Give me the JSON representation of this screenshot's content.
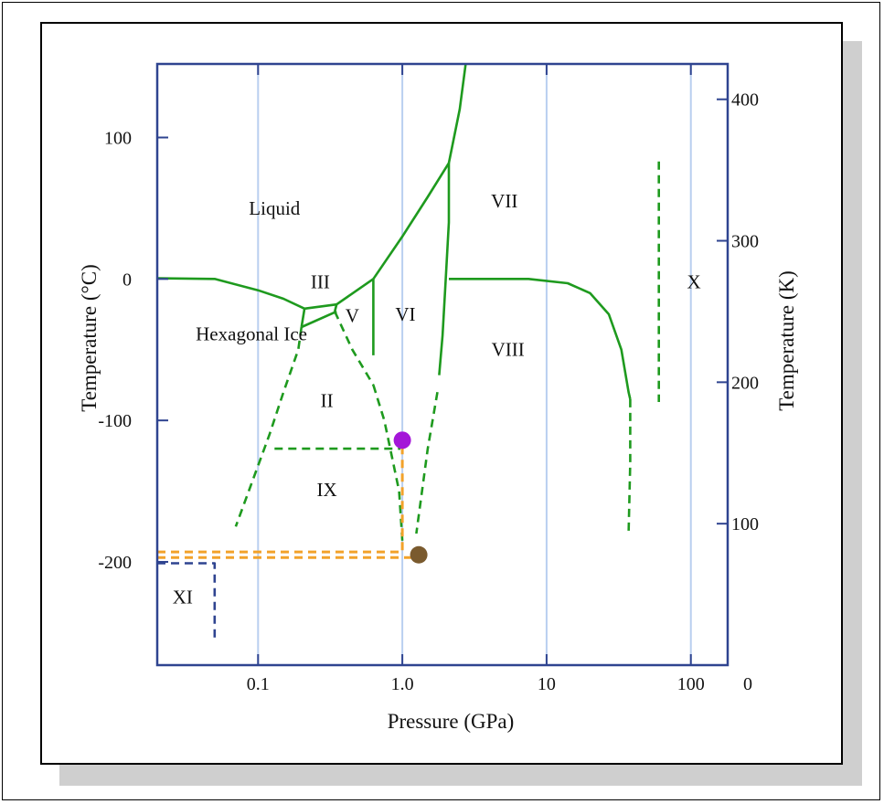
{
  "chart_data": {
    "type": "phase-diagram",
    "xlabel": "Pressure (GPa)",
    "ylabel_left": "Temperature (°C)",
    "ylabel_right": "Temperature (K)",
    "x_scale": "log",
    "xlim": [
      0.02,
      180
    ],
    "x_ticks": [
      0.1,
      1.0,
      10,
      100
    ],
    "x_tick_labels": [
      "0.1",
      "1.0",
      "10",
      "100"
    ],
    "ylim_c": [
      -273,
      152
    ],
    "y_ticks_c": [
      100,
      0,
      -100,
      -200
    ],
    "y_tick_labels_c": [
      "100",
      "0",
      "-100",
      "-200"
    ],
    "y_ticks_k": [
      400,
      300,
      200,
      100
    ],
    "y_tick_labels_k": [
      "400",
      "300",
      "200",
      "100"
    ],
    "y_axis_right_zero_label": "0",
    "grid": "vertical",
    "colors": {
      "axis": "#2f4490",
      "grid": "#b9cff0",
      "boundary": "#1e9a1e",
      "orange_path": "#f2a22a",
      "xi_boundary": "#2f4490",
      "purple_point": "#a416d8",
      "brown_point": "#7a5a2e"
    },
    "regions": [
      {
        "label": "Liquid",
        "p": 0.13,
        "t": 50
      },
      {
        "label": "III",
        "p": 0.27,
        "t": -2
      },
      {
        "label": "Hexagonal Ice",
        "p": 0.09,
        "t": -39
      },
      {
        "label": "V",
        "p": 0.45,
        "t": -26
      },
      {
        "label": "VI",
        "p": 1.05,
        "t": -25
      },
      {
        "label": "VII",
        "p": 5.1,
        "t": 55
      },
      {
        "label": "VIII",
        "p": 5.4,
        "t": -50
      },
      {
        "label": "X",
        "p": 105,
        "t": -2
      },
      {
        "label": "II",
        "p": 0.3,
        "t": -86
      },
      {
        "label": "IX",
        "p": 0.3,
        "t": -149
      },
      {
        "label": "XI",
        "p": 0.03,
        "t": -225
      }
    ],
    "solid_boundaries": [
      [
        [
          0.02,
          0.5
        ],
        [
          0.05,
          0
        ],
        [
          0.1,
          -8
        ],
        [
          0.15,
          -14
        ],
        [
          0.21,
          -21
        ]
      ],
      [
        [
          0.21,
          -21
        ],
        [
          0.35,
          -18
        ]
      ],
      [
        [
          0.35,
          -18
        ],
        [
          0.63,
          0
        ]
      ],
      [
        [
          0.63,
          0
        ],
        [
          1.0,
          30
        ],
        [
          1.5,
          58
        ],
        [
          2.1,
          82
        ],
        [
          2.5,
          120
        ],
        [
          2.75,
          152
        ]
      ],
      [
        [
          0.21,
          -21
        ],
        [
          0.2,
          -34
        ]
      ],
      [
        [
          0.2,
          -34
        ],
        [
          0.35,
          -23
        ]
      ],
      [
        [
          0.35,
          -18
        ],
        [
          0.34,
          -23
        ]
      ],
      [
        [
          0.63,
          0
        ],
        [
          0.63,
          -54
        ]
      ],
      [
        [
          2.1,
          82
        ],
        [
          2.1,
          40
        ],
        [
          2.0,
          0
        ],
        [
          1.9,
          -40
        ],
        [
          1.8,
          -68
        ]
      ],
      [
        [
          2.1,
          0
        ],
        [
          7.5,
          0
        ],
        [
          14,
          -3
        ],
        [
          20,
          -10
        ],
        [
          27,
          -25
        ],
        [
          33,
          -50
        ],
        [
          37,
          -80
        ],
        [
          38,
          -85
        ]
      ]
    ],
    "dashed_boundaries": [
      [
        [
          0.2,
          -34
        ],
        [
          0.19,
          -50
        ],
        [
          0.15,
          -80
        ],
        [
          0.12,
          -110
        ],
        [
          0.07,
          -175
        ]
      ],
      [
        [
          0.34,
          -23
        ],
        [
          0.45,
          -50
        ],
        [
          0.63,
          -75
        ]
      ],
      [
        [
          0.63,
          -75
        ],
        [
          0.75,
          -100
        ],
        [
          0.95,
          -150
        ],
        [
          1.0,
          -185
        ]
      ],
      [
        [
          0.13,
          -120
        ],
        [
          0.97,
          -120
        ]
      ],
      [
        [
          1.75,
          -80
        ],
        [
          1.5,
          -120
        ],
        [
          1.25,
          -180
        ]
      ],
      [
        [
          38,
          -85
        ],
        [
          38,
          -130
        ],
        [
          37,
          -180
        ]
      ],
      [
        [
          60,
          83
        ],
        [
          60,
          -87
        ]
      ]
    ],
    "orange_path": [
      [
        [
          0.02,
          -193
        ],
        [
          1.0,
          -193
        ],
        [
          1.0,
          -115
        ]
      ],
      [
        [
          0.02,
          -197
        ],
        [
          1.3,
          -197
        ]
      ]
    ],
    "xi_boundary": [
      [
        0.02,
        -201
      ],
      [
        0.05,
        -201
      ],
      [
        0.05,
        -255
      ]
    ],
    "points": [
      {
        "p": 1.0,
        "t": -114,
        "color": "#a416d8"
      },
      {
        "p": 1.3,
        "t": -195,
        "color": "#7a5a2e"
      }
    ]
  }
}
